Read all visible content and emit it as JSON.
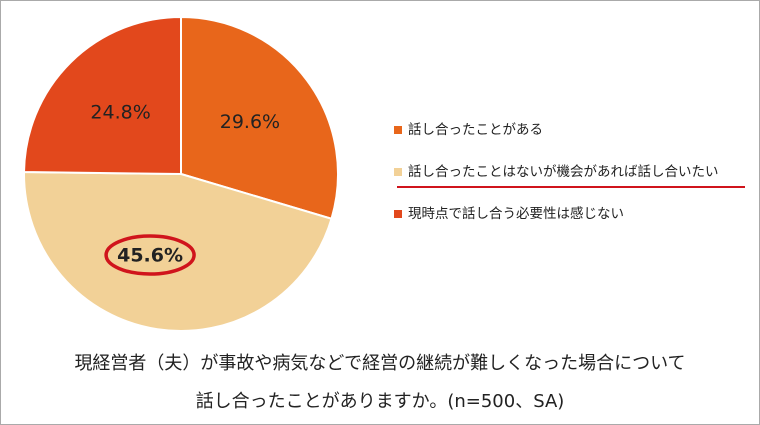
{
  "chart_data": {
    "type": "pie",
    "categories": [
      "話し合ったことがある",
      "話し合ったことはないが機会があれば話し合いたい",
      "現時点で話し合う必要性は感じない"
    ],
    "values": [
      29.6,
      45.6,
      24.8
    ],
    "value_labels": [
      "29.6%",
      "45.6%",
      "24.8%"
    ],
    "colors": [
      "#E8661B",
      "#F2D197",
      "#E2481C"
    ],
    "caption": [
      "現経営者（夫）が事故や病気などで経営の継続が難しくなった場合について",
      "話し合ったことがありますか。(n=500、SA)"
    ]
  }
}
